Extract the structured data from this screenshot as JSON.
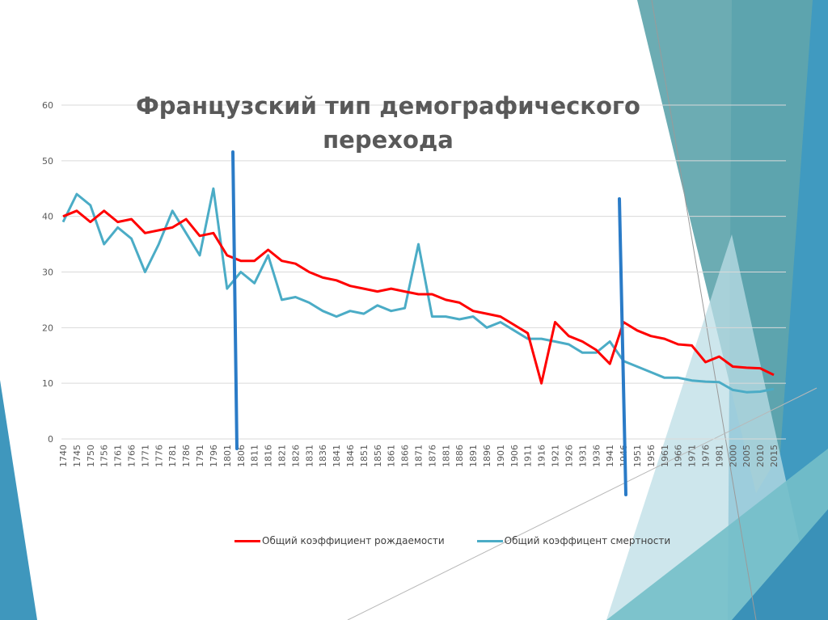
{
  "chart_data": {
    "type": "line",
    "title": "Французский тип демографического перехода",
    "xlabel": "",
    "ylabel": "",
    "ylim": [
      0,
      60
    ],
    "yticks": [
      0,
      10,
      20,
      30,
      40,
      50,
      60
    ],
    "grid": true,
    "legend_position": "bottom",
    "categories": [
      "1740",
      "1745",
      "1750",
      "1756",
      "1761",
      "1766",
      "1771",
      "1776",
      "1781",
      "1786",
      "1791",
      "1796",
      "1801",
      "1806",
      "1811",
      "1816",
      "1821",
      "1826",
      "1831",
      "1836",
      "1841",
      "1846",
      "1851",
      "1856",
      "1861",
      "1866",
      "1871",
      "1876",
      "1881",
      "1886",
      "1891",
      "1896",
      "1901",
      "1906",
      "1911",
      "1916",
      "1921",
      "1926",
      "1931",
      "1936",
      "1941",
      "1946",
      "1951",
      "1956",
      "1961",
      "1966",
      "1971",
      "1976",
      "1981",
      "2000",
      "2005",
      "2010",
      "2015"
    ],
    "series": [
      {
        "name": "Общий коэффициент рождаемости",
        "color": "#ff0000",
        "values": [
          40,
          41,
          39,
          41,
          39,
          39.5,
          37,
          37.5,
          38,
          39.5,
          36.5,
          37,
          33,
          32,
          32,
          34,
          32,
          31.5,
          30,
          29,
          28.5,
          27.5,
          27,
          26.5,
          27,
          26.5,
          26,
          26,
          25,
          24.5,
          23,
          22.5,
          22,
          20.5,
          19,
          10,
          21,
          18.5,
          17.5,
          16,
          13.5,
          21,
          19.5,
          18.5,
          18,
          17,
          16.8,
          13.8,
          14.8,
          13,
          12.8,
          12.7,
          11.5
        ]
      },
      {
        "name": "Общий коэффицент смертности",
        "color": "#4bacc6",
        "values": [
          39,
          44,
          42,
          35,
          38,
          36,
          30,
          35,
          41,
          37,
          33,
          45,
          27,
          30,
          28,
          33,
          25,
          25.5,
          24.5,
          23,
          22,
          23,
          22.5,
          24,
          23,
          23.5,
          35,
          22,
          22,
          21.5,
          22,
          20,
          21,
          19.5,
          18,
          18,
          17.5,
          17,
          15.5,
          15.5,
          17.5,
          14,
          13,
          12,
          11,
          11,
          10.5,
          10.3,
          10.2,
          8.8,
          8.4,
          8.5,
          9
        ]
      }
    ],
    "annotations": [
      {
        "type": "vertical-line",
        "at": "1801-1806",
        "color": "#2a7bc7"
      },
      {
        "type": "vertical-line",
        "at": "1946",
        "color": "#2a7bc7"
      }
    ]
  },
  "theme": {
    "accent_teal": "#5fa5ac",
    "accent_blue": "#409ac0"
  }
}
